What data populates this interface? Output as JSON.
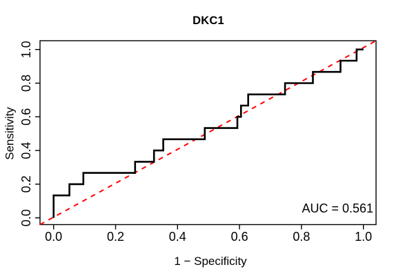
{
  "chart_data": {
    "type": "line",
    "subtype": "roc-curve",
    "title": "DKC1",
    "xlabel": "1 − Specificity",
    "ylabel": "Sensitivity",
    "auc_label": "AUC = 0.561",
    "auc_value": 0.561,
    "xlim": [
      0,
      1
    ],
    "ylim": [
      0,
      1
    ],
    "grid": false,
    "x_tick_labels": [
      "0.0",
      "0.2",
      "0.4",
      "0.6",
      "0.8",
      "1.0"
    ],
    "x_tick_values": [
      0.0,
      0.2,
      0.4,
      0.6,
      0.8,
      1.0
    ],
    "y_tick_labels": [
      "0.0",
      "0.2",
      "0.4",
      "0.6",
      "0.8",
      "1.0"
    ],
    "y_tick_values": [
      0.0,
      0.2,
      0.4,
      0.6,
      0.8,
      1.0
    ],
    "roc_color": "#000000",
    "diagonal_color": "#ff0000",
    "diagonal_style": "dashed",
    "diagonal": {
      "from": [
        0,
        0
      ],
      "to": [
        1,
        1
      ]
    },
    "series": [
      {
        "name": "ROC curve",
        "step": true,
        "points": [
          [
            0.0,
            0.0
          ],
          [
            0.0,
            0.1333
          ],
          [
            0.051,
            0.2
          ],
          [
            0.096,
            0.2667
          ],
          [
            0.263,
            0.3333
          ],
          [
            0.324,
            0.4
          ],
          [
            0.354,
            0.4667
          ],
          [
            0.488,
            0.5333
          ],
          [
            0.593,
            0.6
          ],
          [
            0.605,
            0.6667
          ],
          [
            0.628,
            0.7333
          ],
          [
            0.747,
            0.8
          ],
          [
            0.837,
            0.8667
          ],
          [
            0.926,
            0.9333
          ],
          [
            0.978,
            1.0
          ],
          [
            1.0,
            1.0
          ]
        ]
      }
    ]
  }
}
